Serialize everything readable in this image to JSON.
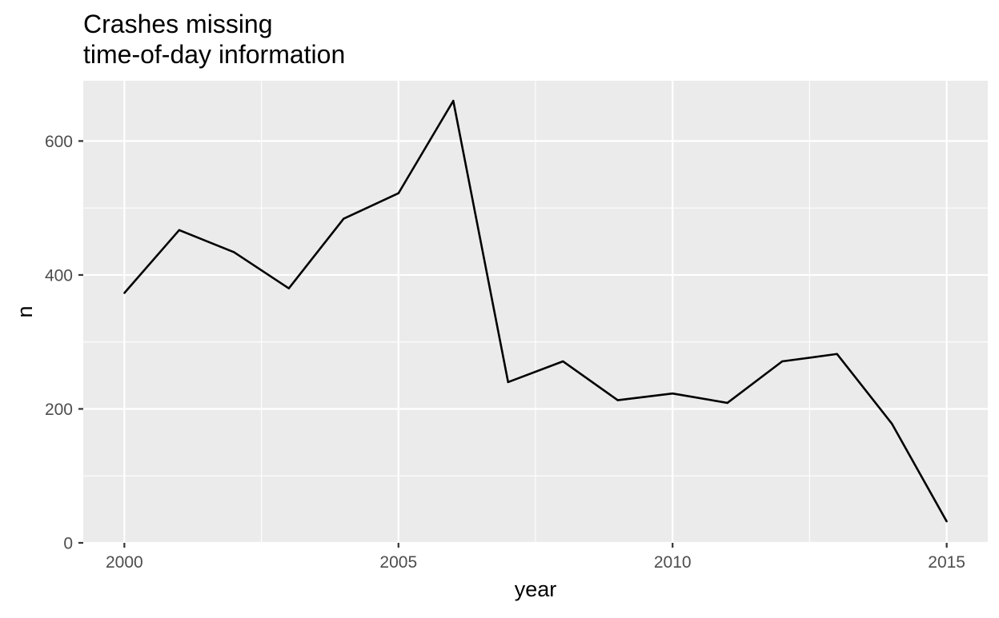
{
  "chart_data": {
    "type": "line",
    "title_line1": "Crashes missing",
    "title_line2": "time-of-day information",
    "xlabel": "year",
    "ylabel": "n",
    "x": [
      2000,
      2001,
      2002,
      2003,
      2004,
      2005,
      2006,
      2007,
      2008,
      2009,
      2010,
      2011,
      2012,
      2013,
      2014,
      2015
    ],
    "y": [
      373,
      467,
      434,
      380,
      484,
      522,
      660,
      240,
      271,
      213,
      223,
      209,
      271,
      282,
      178,
      32
    ],
    "xlim": [
      1999.25,
      2015.75
    ],
    "ylim": [
      0,
      690
    ],
    "x_ticks": [
      2000,
      2005,
      2010,
      2015
    ],
    "y_ticks": [
      0,
      200,
      400,
      600
    ],
    "x_minor_ticks": [
      2002.5,
      2007.5,
      2012.5
    ],
    "y_minor_ticks": [
      100,
      300,
      500
    ],
    "grid": true,
    "legend": false,
    "colors": {
      "panel": "#ebebeb",
      "grid": "#ffffff",
      "line": "#000000",
      "tick_text": "#4d4d4d",
      "tick_mark": "#333333",
      "text": "#000000"
    }
  }
}
